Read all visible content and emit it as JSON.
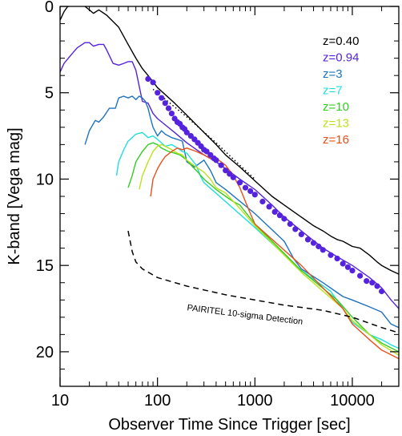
{
  "chart_data": {
    "type": "line",
    "xlabel": "Observer Time Since Trigger [sec]",
    "ylabel": "K-band [Vega mag]",
    "x_scale": "log",
    "y_inverted": true,
    "xlim": [
      10,
      30000
    ],
    "ylim": [
      22,
      0
    ],
    "x_ticks": [
      {
        "value": 10,
        "label": "10"
      },
      {
        "value": 100,
        "label": "100"
      },
      {
        "value": 1000,
        "label": "1000"
      },
      {
        "value": 10000,
        "label": "10000"
      }
    ],
    "y_ticks": [
      {
        "value": 0,
        "label": "0"
      },
      {
        "value": 5,
        "label": "5"
      },
      {
        "value": 10,
        "label": "10"
      },
      {
        "value": 15,
        "label": "15"
      },
      {
        "value": 20,
        "label": "20"
      }
    ],
    "legend_position": "top-right",
    "series": [
      {
        "name": "z=0.40",
        "color": "#000000",
        "style": "solid",
        "points": [
          [
            10,
            0.8
          ],
          [
            11,
            0.3
          ],
          [
            12,
            0.0
          ],
          [
            15,
            -0.1
          ],
          [
            18,
            0.0
          ],
          [
            20,
            0.2
          ],
          [
            22,
            0.4
          ],
          [
            25,
            0.2
          ],
          [
            30,
            0.5
          ],
          [
            40,
            1.2
          ],
          [
            50,
            2.2
          ],
          [
            60,
            3.0
          ],
          [
            70,
            3.6
          ],
          [
            80,
            4.0
          ],
          [
            100,
            4.7
          ],
          [
            150,
            5.6
          ],
          [
            200,
            6.3
          ],
          [
            300,
            7.3
          ],
          [
            400,
            8.0
          ],
          [
            500,
            8.6
          ],
          [
            700,
            9.3
          ],
          [
            1000,
            10.1
          ],
          [
            1500,
            11.0
          ],
          [
            2000,
            11.5
          ],
          [
            3000,
            12.2
          ],
          [
            4000,
            12.7
          ],
          [
            5000,
            13.0
          ],
          [
            6000,
            13.3
          ],
          [
            7000,
            13.5
          ],
          [
            8000,
            13.6
          ],
          [
            10000,
            13.9
          ],
          [
            12000,
            14.0
          ],
          [
            15000,
            14.4
          ],
          [
            18000,
            14.8
          ],
          [
            20000,
            15.0
          ],
          [
            25000,
            15.3
          ],
          [
            30000,
            15.5
          ]
        ]
      },
      {
        "name": "z=0.94",
        "color": "#5522dd",
        "style": "solid",
        "points": [
          [
            10,
            3.8
          ],
          [
            11,
            3.3
          ],
          [
            13,
            2.8
          ],
          [
            15,
            2.4
          ],
          [
            18,
            2.1
          ],
          [
            20,
            2.1
          ],
          [
            22,
            2.3
          ],
          [
            25,
            2.2
          ],
          [
            28,
            2.2
          ],
          [
            30,
            2.5
          ],
          [
            35,
            3.3
          ],
          [
            40,
            3.4
          ],
          [
            45,
            3.3
          ],
          [
            50,
            3.2
          ],
          [
            55,
            3.2
          ],
          [
            60,
            3.7
          ],
          [
            70,
            5.5
          ],
          [
            80,
            5.6
          ],
          [
            90,
            6.2
          ],
          [
            100,
            6.5
          ],
          [
            150,
            7.3
          ],
          [
            200,
            7.9
          ],
          [
            300,
            8.6
          ],
          [
            400,
            9.0
          ],
          [
            500,
            9.4
          ],
          [
            700,
            10.0
          ],
          [
            1000,
            10.6
          ],
          [
            1500,
            11.5
          ],
          [
            2000,
            12.2
          ],
          [
            3000,
            13.0
          ],
          [
            5000,
            14.0
          ],
          [
            7000,
            14.5
          ],
          [
            10000,
            15.0
          ],
          [
            15000,
            15.7
          ],
          [
            20000,
            16.3
          ],
          [
            25000,
            17.0
          ],
          [
            30000,
            17.5
          ]
        ]
      },
      {
        "name": "z=3",
        "color": "#1e73be",
        "style": "solid",
        "points": [
          [
            18,
            8.0
          ],
          [
            20,
            7.2
          ],
          [
            23,
            6.6
          ],
          [
            25,
            6.7
          ],
          [
            28,
            6.4
          ],
          [
            32,
            5.9
          ],
          [
            37,
            5.9
          ],
          [
            40,
            5.3
          ],
          [
            45,
            5.2
          ],
          [
            50,
            5.3
          ],
          [
            55,
            5.2
          ],
          [
            60,
            5.4
          ],
          [
            65,
            5.2
          ],
          [
            70,
            5.3
          ],
          [
            75,
            5.5
          ],
          [
            80,
            5.9
          ],
          [
            85,
            6.5
          ],
          [
            90,
            7.0
          ],
          [
            100,
            7.5
          ],
          [
            110,
            7.2
          ],
          [
            120,
            7.4
          ],
          [
            140,
            7.6
          ],
          [
            160,
            7.7
          ],
          [
            180,
            7.8
          ],
          [
            200,
            9.0
          ],
          [
            240,
            9.3
          ],
          [
            300,
            8.9
          ],
          [
            350,
            9.5
          ],
          [
            400,
            10.2
          ],
          [
            500,
            10.6
          ],
          [
            1000,
            12.0
          ],
          [
            2000,
            13.6
          ],
          [
            2500,
            14.6
          ],
          [
            3000,
            15.2
          ],
          [
            5000,
            16.0
          ],
          [
            8000,
            16.8
          ],
          [
            10000,
            17.0
          ],
          [
            15000,
            17.4
          ],
          [
            20000,
            17.7
          ],
          [
            25000,
            18.4
          ],
          [
            30000,
            18.6
          ]
        ]
      },
      {
        "name": "z=7",
        "color": "#22dddd",
        "style": "solid",
        "points": [
          [
            38,
            9.8
          ],
          [
            40,
            9.0
          ],
          [
            45,
            8.3
          ],
          [
            50,
            7.8
          ],
          [
            60,
            7.4
          ],
          [
            70,
            7.3
          ],
          [
            80,
            7.6
          ],
          [
            90,
            7.5
          ],
          [
            100,
            7.7
          ],
          [
            120,
            8.1
          ],
          [
            140,
            8.0
          ],
          [
            160,
            8.2
          ],
          [
            180,
            8.4
          ],
          [
            200,
            8.5
          ],
          [
            220,
            8.8
          ],
          [
            250,
            9.2
          ],
          [
            280,
            9.9
          ],
          [
            300,
            10.2
          ],
          [
            1000,
            12.8
          ],
          [
            3000,
            15.3
          ],
          [
            6000,
            16.5
          ],
          [
            8000,
            17.5
          ],
          [
            10000,
            18.3
          ],
          [
            15000,
            19.0
          ],
          [
            20000,
            19.3
          ],
          [
            25000,
            19.6
          ],
          [
            30000,
            19.8
          ]
        ]
      },
      {
        "name": "z=10",
        "color": "#33cc22",
        "style": "solid",
        "points": [
          [
            50,
            10.5
          ],
          [
            55,
            9.8
          ],
          [
            60,
            9.0
          ],
          [
            70,
            8.4
          ],
          [
            80,
            8.0
          ],
          [
            90,
            7.9
          ],
          [
            100,
            8.0
          ],
          [
            110,
            8.2
          ],
          [
            130,
            8.4
          ],
          [
            150,
            8.5
          ],
          [
            170,
            8.6
          ],
          [
            200,
            8.9
          ],
          [
            230,
            9.3
          ],
          [
            260,
            9.6
          ],
          [
            300,
            10.0
          ],
          [
            400,
            10.6
          ],
          [
            500,
            11.0
          ],
          [
            600,
            11.3
          ],
          [
            700,
            11.5
          ],
          [
            1000,
            12.6
          ],
          [
            3000,
            15.3
          ],
          [
            7000,
            17.0
          ],
          [
            10000,
            18.0
          ],
          [
            15000,
            19.0
          ],
          [
            20000,
            19.5
          ],
          [
            30000,
            20.0
          ]
        ]
      },
      {
        "name": "z=13",
        "color": "#bbe11b",
        "style": "solid",
        "points": [
          [
            65,
            10.6
          ],
          [
            70,
            9.8
          ],
          [
            80,
            9.0
          ],
          [
            90,
            8.4
          ],
          [
            100,
            8.1
          ],
          [
            110,
            8.0
          ],
          [
            120,
            8.1
          ],
          [
            140,
            8.3
          ],
          [
            160,
            8.5
          ],
          [
            180,
            8.6
          ],
          [
            200,
            8.9
          ],
          [
            250,
            9.3
          ],
          [
            300,
            9.6
          ],
          [
            350,
            10.0
          ],
          [
            400,
            10.5
          ],
          [
            500,
            10.8
          ],
          [
            700,
            11.7
          ],
          [
            1000,
            12.7
          ],
          [
            3000,
            15.4
          ],
          [
            8000,
            17.5
          ],
          [
            10000,
            18.2
          ],
          [
            15000,
            19.0
          ],
          [
            20000,
            19.6
          ],
          [
            30000,
            20.2
          ]
        ]
      },
      {
        "name": "z=16",
        "color": "#e8501c",
        "style": "solid",
        "points": [
          [
            85,
            11.0
          ],
          [
            90,
            10.0
          ],
          [
            100,
            9.4
          ],
          [
            110,
            9.0
          ],
          [
            120,
            8.7
          ],
          [
            140,
            8.4
          ],
          [
            160,
            8.2
          ],
          [
            180,
            8.3
          ],
          [
            200,
            8.2
          ],
          [
            250,
            8.4
          ],
          [
            300,
            8.6
          ],
          [
            350,
            8.8
          ],
          [
            400,
            8.8
          ],
          [
            450,
            9.0
          ],
          [
            500,
            9.2
          ],
          [
            600,
            9.8
          ],
          [
            700,
            10.5
          ],
          [
            800,
            11.3
          ],
          [
            900,
            12.0
          ],
          [
            1000,
            12.6
          ],
          [
            3000,
            15.0
          ],
          [
            5000,
            16.3
          ],
          [
            8000,
            17.5
          ],
          [
            10000,
            18.4
          ],
          [
            15000,
            19.3
          ],
          [
            20000,
            19.9
          ],
          [
            30000,
            20.4
          ]
        ]
      },
      {
        "name": "",
        "color": "#000000",
        "style": "dotted",
        "points": [
          [
            90,
            4.8
          ],
          [
            200,
            6.4
          ],
          [
            400,
            7.9
          ],
          [
            700,
            9.2
          ],
          [
            1000,
            10.0
          ]
        ]
      },
      {
        "name": "",
        "color": "#000000",
        "style": "dashed",
        "points": [
          [
            50,
            13.0
          ],
          [
            55,
            14.2
          ],
          [
            60,
            14.8
          ],
          [
            70,
            15.2
          ],
          [
            100,
            15.7
          ],
          [
            200,
            16.2
          ],
          [
            500,
            16.7
          ],
          [
            1000,
            17.0
          ],
          [
            2000,
            17.3
          ],
          [
            5000,
            17.6
          ],
          [
            10000,
            18.0
          ],
          [
            20000,
            18.6
          ],
          [
            30000,
            18.9
          ]
        ]
      }
    ],
    "scatter": {
      "color": "#5522dd",
      "points": [
        [
          80,
          4.2
        ],
        [
          90,
          4.4
        ],
        [
          100,
          5.0
        ],
        [
          110,
          5.3
        ],
        [
          120,
          5.6
        ],
        [
          130,
          5.9
        ],
        [
          140,
          6.2
        ],
        [
          150,
          6.5
        ],
        [
          160,
          6.7
        ],
        [
          170,
          6.8
        ],
        [
          180,
          7.0
        ],
        [
          190,
          7.1
        ],
        [
          200,
          7.3
        ],
        [
          220,
          7.5
        ],
        [
          240,
          7.7
        ],
        [
          260,
          7.9
        ],
        [
          280,
          8.1
        ],
        [
          300,
          8.3
        ],
        [
          320,
          8.4
        ],
        [
          350,
          8.6
        ],
        [
          380,
          8.8
        ],
        [
          400,
          8.9
        ],
        [
          450,
          9.2
        ],
        [
          500,
          9.5
        ],
        [
          550,
          9.7
        ],
        [
          600,
          9.9
        ],
        [
          700,
          10.2
        ],
        [
          800,
          10.5
        ],
        [
          900,
          10.7
        ],
        [
          1000,
          10.9
        ],
        [
          1200,
          11.3
        ],
        [
          1400,
          11.6
        ],
        [
          1600,
          11.9
        ],
        [
          1800,
          12.1
        ],
        [
          2000,
          12.3
        ],
        [
          2300,
          12.6
        ],
        [
          2600,
          12.9
        ],
        [
          3000,
          13.2
        ],
        [
          3500,
          13.5
        ],
        [
          4000,
          13.7
        ],
        [
          4500,
          13.9
        ],
        [
          5000,
          14.1
        ],
        [
          6000,
          14.4
        ],
        [
          7000,
          14.6
        ],
        [
          8000,
          14.9
        ],
        [
          9000,
          15.1
        ],
        [
          10000,
          15.3
        ],
        [
          12000,
          15.6
        ],
        [
          14000,
          15.9
        ],
        [
          16000,
          16.0
        ],
        [
          18000,
          16.2
        ],
        [
          20000,
          16.5
        ]
      ]
    },
    "annotations": [
      {
        "text": "PAIRITEL 10-sigma Detection",
        "x": 200,
        "y": 17.6,
        "angle_deg": 7
      }
    ]
  }
}
